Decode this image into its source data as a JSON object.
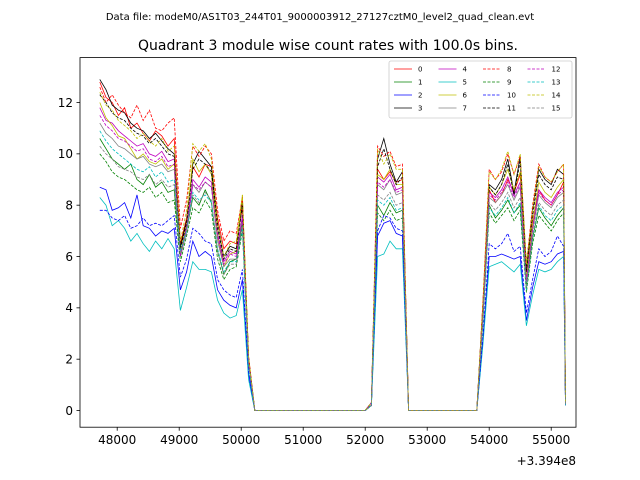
{
  "chart_data": {
    "type": "line",
    "suptitle": "Data file: modeM0/AS1T03_244T01_9000003912_27127cztM0_level2_quad_clean.evt",
    "title": "Quadrant 3 module wise count rates with 100.0s bins.",
    "xlabel": "",
    "ylabel": "",
    "x_offset_label": "+3.394e8",
    "xlim": [
      47400,
      55400
    ],
    "ylim": [
      -0.65,
      13.75
    ],
    "x_ticks": [
      48000,
      49000,
      50000,
      51000,
      52000,
      53000,
      54000,
      55000
    ],
    "x_tick_labels": [
      "48000",
      "49000",
      "50000",
      "51000",
      "52000",
      "53000",
      "54000",
      "55000"
    ],
    "y_ticks": [
      0,
      2,
      4,
      6,
      8,
      10,
      12
    ],
    "y_tick_labels": [
      "0",
      "2",
      "4",
      "6",
      "8",
      "10",
      "12"
    ],
    "grid": false,
    "legend_position": "top-right",
    "legend_columns": 4,
    "x": [
      47720,
      47820,
      47920,
      48020,
      48120,
      48220,
      48320,
      48420,
      48520,
      48620,
      48720,
      48820,
      48920,
      49020,
      49120,
      49220,
      49320,
      49420,
      49520,
      49620,
      49720,
      49820,
      49920,
      50020,
      50120,
      50220,
      51000,
      52000,
      52100,
      52200,
      52300,
      52400,
      52500,
      52600,
      52700,
      53000,
      53800,
      53900,
      54000,
      54100,
      54200,
      54300,
      54400,
      54500,
      54600,
      54700,
      54800,
      54900,
      55000,
      55100,
      55200,
      55230
    ],
    "series": [
      {
        "name": "0",
        "color": "#ff0000",
        "dash": false,
        "values": [
          12.8,
          12.2,
          12.0,
          11.5,
          11.8,
          11.0,
          11.2,
          10.8,
          10.5,
          10.9,
          10.7,
          10.3,
          10.6,
          6.5,
          7.5,
          9.5,
          9.1,
          9.6,
          9.5,
          7.5,
          6.3,
          6.6,
          6.5,
          7.9,
          2.1,
          0,
          0,
          0,
          0.3,
          9.4,
          9.0,
          9.3,
          8.9,
          9.0,
          0,
          0,
          0,
          4.0,
          8.6,
          8.1,
          8.4,
          9.0,
          8.5,
          9.2,
          5.3,
          7.4,
          8.6,
          8.2,
          8.0,
          8.4,
          8.9,
          0.2
        ]
      },
      {
        "name": "1",
        "color": "#008000",
        "dash": false,
        "values": [
          10.6,
          10.2,
          9.8,
          9.6,
          9.4,
          9.6,
          9.0,
          8.8,
          9.2,
          8.7,
          8.9,
          8.5,
          8.6,
          6.0,
          7.0,
          8.3,
          8.0,
          8.6,
          8.1,
          6.2,
          5.3,
          5.8,
          5.9,
          7.3,
          1.9,
          0,
          0,
          0,
          0.2,
          8.0,
          7.6,
          8.1,
          7.7,
          7.8,
          0,
          0,
          0,
          3.6,
          8.0,
          7.5,
          7.8,
          8.2,
          7.7,
          8.0,
          4.8,
          6.7,
          7.9,
          7.5,
          7.2,
          7.6,
          7.9,
          0.2
        ]
      },
      {
        "name": "2",
        "color": "#0000ff",
        "dash": false,
        "values": [
          8.7,
          8.6,
          7.8,
          7.9,
          8.1,
          7.5,
          8.4,
          7.2,
          7.1,
          6.8,
          7.0,
          6.9,
          7.1,
          4.7,
          5.4,
          6.6,
          6.0,
          6.2,
          6.0,
          4.7,
          4.3,
          4.1,
          4.0,
          5.1,
          1.4,
          0,
          0,
          0,
          0.2,
          6.8,
          7.3,
          7.4,
          6.9,
          6.8,
          0,
          0,
          0,
          2.8,
          6.0,
          6.0,
          6.1,
          6.0,
          5.9,
          6.0,
          3.5,
          4.8,
          5.8,
          5.7,
          5.8,
          6.1,
          6.2,
          0.2
        ]
      },
      {
        "name": "3",
        "color": "#000000",
        "dash": false,
        "values": [
          12.9,
          12.5,
          11.9,
          11.7,
          11.6,
          11.2,
          11.0,
          10.9,
          10.6,
          10.8,
          10.5,
          10.2,
          10.0,
          6.4,
          7.4,
          9.6,
          10.1,
          9.8,
          9.5,
          7.3,
          6.0,
          6.4,
          6.3,
          8.2,
          2.0,
          0,
          0,
          0,
          0.3,
          9.8,
          10.6,
          9.6,
          8.9,
          9.3,
          0,
          0,
          0,
          4.2,
          8.8,
          8.6,
          9.0,
          9.8,
          8.5,
          9.9,
          5.5,
          7.8,
          9.4,
          9.0,
          8.8,
          9.4,
          9.2,
          0.3
        ]
      },
      {
        "name": "4",
        "color": "#bf00bf",
        "dash": false,
        "values": [
          11.8,
          11.3,
          11.2,
          10.9,
          10.7,
          10.5,
          10.3,
          10.4,
          10.0,
          9.9,
          10.1,
          9.7,
          9.8,
          6.1,
          7.2,
          9.0,
          8.7,
          9.1,
          8.9,
          6.9,
          5.8,
          6.2,
          6.1,
          7.6,
          1.9,
          0,
          0,
          0,
          0.3,
          9.1,
          8.9,
          9.2,
          8.6,
          8.7,
          0,
          0,
          0,
          3.9,
          8.5,
          8.3,
          8.6,
          9.1,
          8.4,
          8.9,
          5.1,
          7.2,
          8.6,
          8.3,
          8.1,
          8.5,
          8.7,
          0.2
        ]
      },
      {
        "name": "5",
        "color": "#00bfbf",
        "dash": false,
        "values": [
          8.3,
          8.0,
          7.2,
          7.4,
          7.1,
          6.6,
          6.9,
          6.5,
          6.2,
          6.6,
          6.3,
          6.7,
          6.3,
          3.9,
          4.8,
          5.8,
          5.5,
          5.5,
          5.4,
          4.3,
          3.8,
          3.6,
          3.7,
          4.7,
          1.2,
          0,
          0,
          0,
          0.2,
          6.0,
          6.1,
          6.6,
          6.3,
          6.3,
          0,
          0,
          0,
          2.6,
          5.6,
          5.7,
          5.8,
          5.6,
          5.4,
          5.7,
          3.3,
          4.5,
          5.5,
          5.4,
          5.5,
          5.8,
          6.0,
          0.2
        ]
      },
      {
        "name": "6",
        "color": "#bfbf00",
        "dash": false,
        "values": [
          12.0,
          11.4,
          11.1,
          10.7,
          10.6,
          10.2,
          9.8,
          10.0,
          9.7,
          9.6,
          9.8,
          9.4,
          9.6,
          6.2,
          7.3,
          9.8,
          9.3,
          9.6,
          9.2,
          6.8,
          5.6,
          6.1,
          6.2,
          8.4,
          2.0,
          0,
          0,
          0,
          0.3,
          9.2,
          9.0,
          9.4,
          8.8,
          8.8,
          0,
          0,
          0,
          4.0,
          8.7,
          8.4,
          8.8,
          9.4,
          8.6,
          9.3,
          5.3,
          7.3,
          8.9,
          8.5,
          8.3,
          8.7,
          9.0,
          0.3
        ]
      },
      {
        "name": "7",
        "color": "#808080",
        "dash": false,
        "values": [
          11.2,
          10.8,
          10.6,
          10.3,
          10.2,
          10.0,
          9.8,
          9.9,
          9.6,
          9.5,
          9.6,
          9.3,
          9.4,
          6.0,
          7.0,
          8.8,
          8.5,
          8.9,
          8.7,
          6.6,
          5.6,
          5.9,
          5.9,
          7.5,
          1.9,
          0,
          0,
          0,
          0.3,
          8.8,
          8.6,
          9.0,
          8.4,
          8.5,
          0,
          0,
          0,
          3.8,
          8.3,
          8.1,
          8.4,
          8.8,
          8.2,
          8.7,
          5.0,
          7.0,
          8.4,
          8.1,
          7.9,
          8.3,
          8.5,
          0.2
        ]
      },
      {
        "name": "8",
        "color": "#ff0000",
        "dash": true,
        "values": [
          12.6,
          12.0,
          12.3,
          11.9,
          11.6,
          11.4,
          11.9,
          11.3,
          11.7,
          11.0,
          10.9,
          11.2,
          11.4,
          7.1,
          8.2,
          10.3,
          9.9,
          10.3,
          10.0,
          7.8,
          6.6,
          7.0,
          6.9,
          8.3,
          2.1,
          0,
          0,
          0,
          0.3,
          10.3,
          9.9,
          10.1,
          9.5,
          9.6,
          0,
          0,
          0,
          4.3,
          9.4,
          9.0,
          9.3,
          10.0,
          9.2,
          9.9,
          5.7,
          8.0,
          9.6,
          9.1,
          8.9,
          9.3,
          9.6,
          0.3
        ]
      },
      {
        "name": "9",
        "color": "#008000",
        "dash": true,
        "values": [
          10.0,
          9.7,
          9.3,
          9.1,
          9.0,
          8.8,
          8.6,
          8.5,
          8.7,
          8.3,
          8.5,
          8.1,
          8.2,
          5.8,
          6.8,
          7.9,
          7.7,
          8.2,
          7.8,
          5.9,
          5.1,
          5.5,
          5.6,
          7.0,
          1.8,
          0,
          0,
          0,
          0.2,
          7.7,
          7.4,
          7.8,
          7.4,
          7.5,
          0,
          0,
          0,
          3.5,
          7.7,
          7.3,
          7.6,
          7.9,
          7.4,
          7.8,
          4.6,
          6.5,
          7.6,
          7.3,
          7.0,
          7.4,
          7.7,
          0.2
        ]
      },
      {
        "name": "10",
        "color": "#0000ff",
        "dash": true,
        "values": [
          7.8,
          7.8,
          7.5,
          7.4,
          7.6,
          7.1,
          7.2,
          7.5,
          7.2,
          7.3,
          7.2,
          7.4,
          7.6,
          5.2,
          5.9,
          7.1,
          6.9,
          6.6,
          6.5,
          5.1,
          4.7,
          4.5,
          4.4,
          5.5,
          1.5,
          0,
          0,
          0,
          0.2,
          7.0,
          7.6,
          7.5,
          7.1,
          7.0,
          0,
          0,
          0,
          2.9,
          6.5,
          6.3,
          6.5,
          6.9,
          6.2,
          6.4,
          3.8,
          5.1,
          6.3,
          6.0,
          6.2,
          6.8,
          6.4,
          0.2
        ]
      },
      {
        "name": "11",
        "color": "#000000",
        "dash": true,
        "values": [
          12.3,
          12.0,
          11.6,
          11.4,
          11.3,
          11.0,
          10.8,
          10.7,
          10.4,
          10.6,
          10.3,
          10.0,
          9.9,
          6.3,
          7.3,
          9.4,
          9.8,
          9.6,
          9.3,
          7.1,
          5.9,
          6.3,
          6.2,
          8.0,
          2.0,
          0,
          0,
          0,
          0.3,
          9.5,
          10.2,
          9.4,
          8.8,
          9.1,
          0,
          0,
          0,
          4.1,
          8.7,
          8.4,
          8.8,
          9.6,
          8.4,
          9.7,
          5.4,
          7.6,
          9.2,
          8.8,
          8.6,
          9.1,
          9.0,
          0.3
        ]
      },
      {
        "name": "12",
        "color": "#bf00bf",
        "dash": true,
        "values": [
          11.5,
          11.1,
          10.9,
          10.6,
          10.5,
          10.3,
          10.1,
          10.2,
          9.8,
          9.7,
          9.9,
          9.5,
          9.6,
          6.0,
          7.1,
          8.8,
          8.6,
          8.9,
          8.7,
          6.8,
          5.7,
          6.1,
          6.0,
          7.5,
          1.9,
          0,
          0,
          0,
          0.3,
          8.9,
          8.7,
          9.0,
          8.5,
          8.6,
          0,
          0,
          0,
          3.9,
          8.4,
          8.2,
          8.5,
          8.9,
          8.3,
          8.8,
          5.0,
          7.1,
          8.5,
          8.2,
          8.0,
          8.4,
          8.6,
          0.2
        ]
      },
      {
        "name": "13",
        "color": "#00bfbf",
        "dash": true,
        "values": [
          10.9,
          10.5,
          10.2,
          10.0,
          9.8,
          9.6,
          9.4,
          9.3,
          9.5,
          9.1,
          9.3,
          8.9,
          9.0,
          6.2,
          7.0,
          8.5,
          8.2,
          8.4,
          8.1,
          6.3,
          5.4,
          5.8,
          5.8,
          7.1,
          1.8,
          0,
          0,
          0,
          0.2,
          8.2,
          8.0,
          8.3,
          7.8,
          7.9,
          0,
          0,
          0,
          3.6,
          7.9,
          7.6,
          7.9,
          8.3,
          7.7,
          8.1,
          4.7,
          6.7,
          8.0,
          7.6,
          7.4,
          7.8,
          8.0,
          0.2
        ]
      },
      {
        "name": "14",
        "color": "#bfbf00",
        "dash": true,
        "values": [
          12.4,
          11.9,
          11.7,
          11.3,
          11.1,
          10.9,
          10.6,
          10.8,
          10.5,
          10.3,
          10.6,
          10.1,
          10.3,
          6.6,
          7.8,
          10.4,
          10.1,
          10.4,
          9.8,
          7.3,
          6.0,
          6.5,
          6.6,
          8.4,
          2.1,
          0,
          0,
          0,
          0.3,
          10.2,
          9.6,
          10.0,
          9.4,
          9.4,
          0,
          0,
          0,
          4.3,
          9.3,
          9.0,
          9.4,
          10.1,
          9.2,
          10.0,
          5.7,
          7.8,
          9.5,
          9.1,
          8.9,
          9.3,
          9.6,
          0.3
        ]
      },
      {
        "name": "15",
        "color": "#808080",
        "dash": true,
        "values": [
          10.3,
          10.0,
          9.8,
          9.5,
          9.4,
          9.3,
          9.1,
          9.0,
          9.2,
          8.8,
          9.0,
          8.7,
          8.8,
          6.1,
          6.9,
          8.4,
          8.1,
          8.5,
          8.2,
          6.2,
          5.3,
          5.7,
          5.7,
          7.2,
          1.8,
          0,
          0,
          0,
          0.2,
          8.4,
          8.2,
          8.5,
          8.0,
          8.1,
          0,
          0,
          0,
          3.7,
          8.1,
          7.8,
          8.1,
          8.5,
          7.9,
          8.3,
          4.8,
          6.8,
          8.1,
          7.8,
          7.6,
          8.0,
          8.2,
          0.2
        ]
      }
    ]
  }
}
